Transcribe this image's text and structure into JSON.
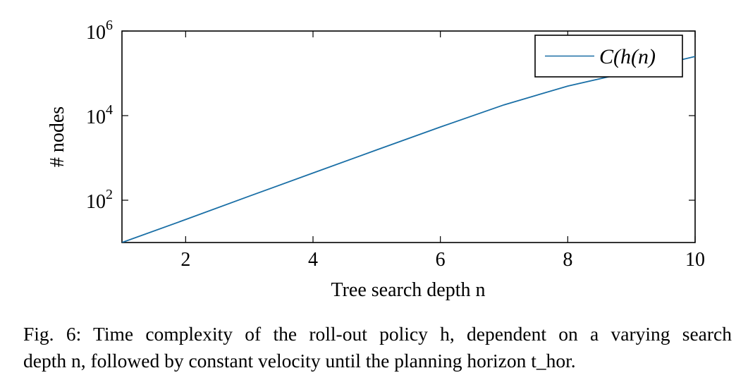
{
  "chart_data": {
    "type": "line",
    "xlabel": "Tree search depth n",
    "ylabel": "# nodes",
    "xlim": [
      1,
      10
    ],
    "ylim": [
      10,
      1000000
    ],
    "y_scale": "log",
    "x_ticks": [
      2,
      4,
      6,
      8,
      10
    ],
    "y_ticks": [
      {
        "value": 100,
        "base": "10",
        "exp": "2"
      },
      {
        "value": 10000,
        "base": "10",
        "exp": "4"
      },
      {
        "value": 1000000,
        "base": "10",
        "exp": "6"
      }
    ],
    "grid": false,
    "legend_position": "top-right",
    "line_color": "#1a6fa6",
    "series": [
      {
        "name": "C(h(n)",
        "x": [
          1,
          2,
          3,
          4,
          5,
          6,
          7,
          8,
          9,
          10
        ],
        "y": [
          10,
          35,
          125,
          440,
          1550,
          5400,
          18000,
          50000,
          110000,
          250000
        ]
      }
    ]
  },
  "caption": {
    "line1": "Fig. 6: Time complexity of the roll-out policy h, dependent on a varying search",
    "line2": "depth n, followed by constant velocity until the planning horizon t_hor."
  }
}
